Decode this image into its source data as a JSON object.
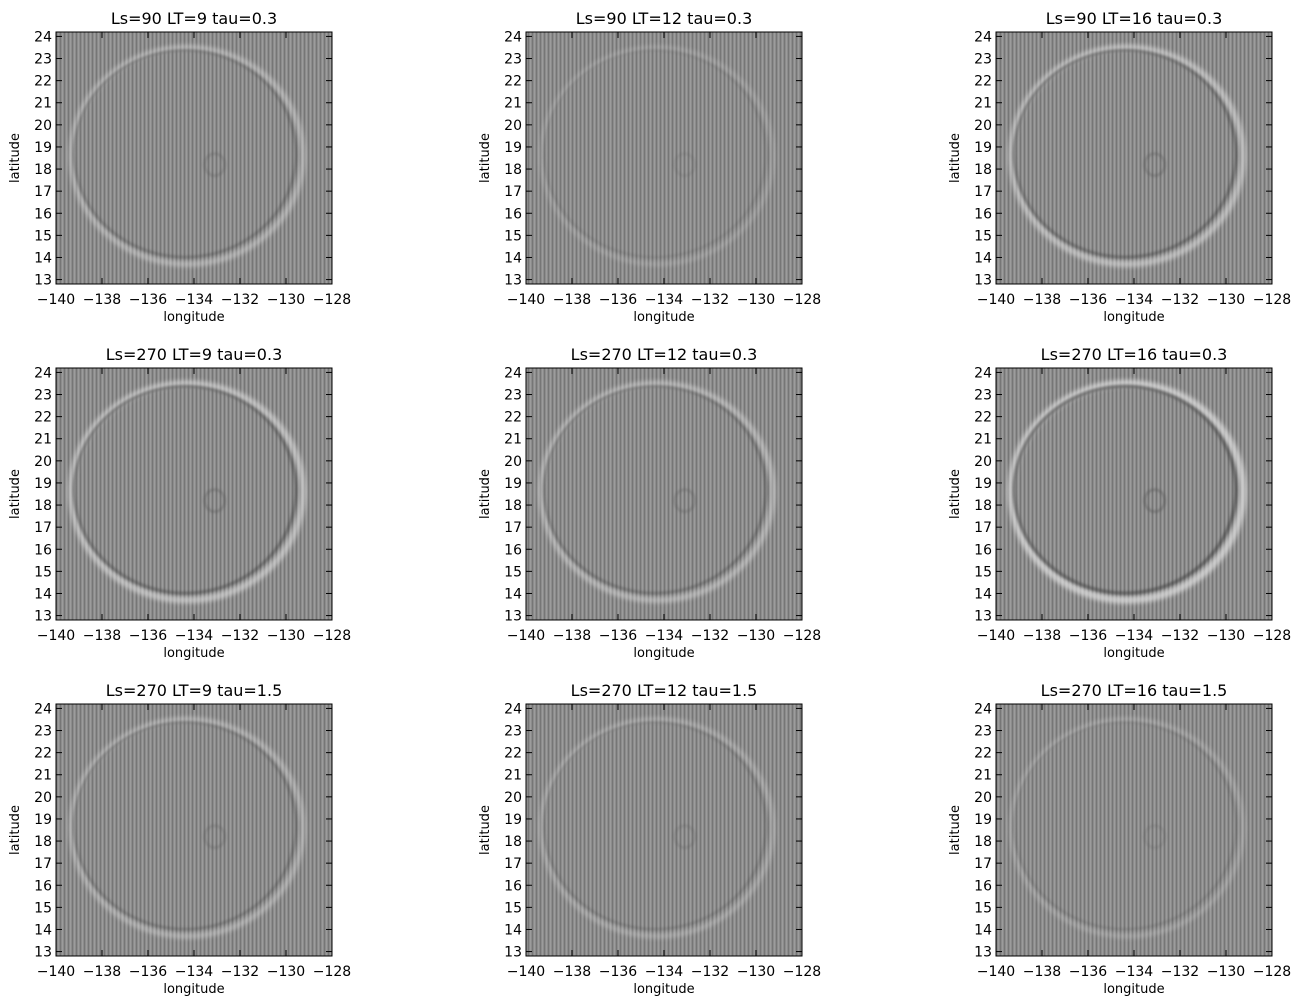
{
  "chart_data": [
    {
      "type": "heatmap",
      "title": "Ls=90 LT=9 tau=0.3",
      "xlabel": "longitude",
      "ylabel": "latitude",
      "x_ticks": [
        "−140",
        "−138",
        "−136",
        "−134",
        "−132",
        "−130",
        "−128"
      ],
      "y_ticks": [
        "13",
        "14",
        "15",
        "16",
        "17",
        "18",
        "19",
        "20",
        "21",
        "22",
        "23",
        "24"
      ],
      "xlim": [
        -140,
        -128
      ],
      "ylim": [
        12.8,
        24.2
      ],
      "colormap": "grayscale",
      "contrast": 0.55
    },
    {
      "type": "heatmap",
      "title": "Ls=90 LT=12 tau=0.3",
      "xlabel": "longitude",
      "ylabel": "latitude",
      "x_ticks": [
        "−140",
        "−138",
        "−136",
        "−134",
        "−132",
        "−130",
        "−128"
      ],
      "y_ticks": [
        "13",
        "14",
        "15",
        "16",
        "17",
        "18",
        "19",
        "20",
        "21",
        "22",
        "23",
        "24"
      ],
      "xlim": [
        -140,
        -128
      ],
      "ylim": [
        12.8,
        24.2
      ],
      "colormap": "grayscale",
      "contrast": 0.18
    },
    {
      "type": "heatmap",
      "title": "Ls=90 LT=16 tau=0.3",
      "xlabel": "longitude",
      "ylabel": "latitude",
      "x_ticks": [
        "−140",
        "−138",
        "−136",
        "−134",
        "−132",
        "−130",
        "−128"
      ],
      "y_ticks": [
        "13",
        "14",
        "15",
        "16",
        "17",
        "18",
        "19",
        "20",
        "21",
        "22",
        "23",
        "24"
      ],
      "xlim": [
        -140,
        -128
      ],
      "ylim": [
        12.8,
        24.2
      ],
      "colormap": "grayscale",
      "contrast": 0.75
    },
    {
      "type": "heatmap",
      "title": "Ls=270 LT=9 tau=0.3",
      "xlabel": "longitude",
      "ylabel": "latitude",
      "x_ticks": [
        "−140",
        "−138",
        "−136",
        "−134",
        "−132",
        "−130",
        "−128"
      ],
      "y_ticks": [
        "13",
        "14",
        "15",
        "16",
        "17",
        "18",
        "19",
        "20",
        "21",
        "22",
        "23",
        "24"
      ],
      "xlim": [
        -140,
        -128
      ],
      "ylim": [
        12.8,
        24.2
      ],
      "colormap": "grayscale",
      "contrast": 0.8
    },
    {
      "type": "heatmap",
      "title": "Ls=270 LT=12 tau=0.3",
      "xlabel": "longitude",
      "ylabel": "latitude",
      "x_ticks": [
        "−140",
        "−138",
        "−136",
        "−134",
        "−132",
        "−130",
        "−128"
      ],
      "y_ticks": [
        "13",
        "14",
        "15",
        "16",
        "17",
        "18",
        "19",
        "20",
        "21",
        "22",
        "23",
        "24"
      ],
      "xlim": [
        -140,
        -128
      ],
      "ylim": [
        12.8,
        24.2
      ],
      "colormap": "grayscale",
      "contrast": 0.6
    },
    {
      "type": "heatmap",
      "title": "Ls=270 LT=16 tau=0.3",
      "xlabel": "longitude",
      "ylabel": "latitude",
      "x_ticks": [
        "−140",
        "−138",
        "−136",
        "−134",
        "−132",
        "−130",
        "−128"
      ],
      "y_ticks": [
        "13",
        "14",
        "15",
        "16",
        "17",
        "18",
        "19",
        "20",
        "21",
        "22",
        "23",
        "24"
      ],
      "xlim": [
        -140,
        -128
      ],
      "ylim": [
        12.8,
        24.2
      ],
      "colormap": "grayscale",
      "contrast": 1.0
    },
    {
      "type": "heatmap",
      "title": "Ls=270 LT=9 tau=1.5",
      "xlabel": "longitude",
      "ylabel": "latitude",
      "x_ticks": [
        "−140",
        "−138",
        "−136",
        "−134",
        "−132",
        "−130",
        "−128"
      ],
      "y_ticks": [
        "13",
        "14",
        "15",
        "16",
        "17",
        "18",
        "19",
        "20",
        "21",
        "22",
        "23",
        "24"
      ],
      "xlim": [
        -140,
        -128
      ],
      "ylim": [
        12.8,
        24.2
      ],
      "colormap": "grayscale",
      "contrast": 0.5
    },
    {
      "type": "heatmap",
      "title": "Ls=270 LT=12 tau=1.5",
      "xlabel": "longitude",
      "ylabel": "latitude",
      "x_ticks": [
        "−140",
        "−138",
        "−136",
        "−134",
        "−132",
        "−130",
        "−128"
      ],
      "y_ticks": [
        "13",
        "14",
        "15",
        "16",
        "17",
        "18",
        "19",
        "20",
        "21",
        "22",
        "23",
        "24"
      ],
      "xlim": [
        -140,
        -128
      ],
      "ylim": [
        12.8,
        24.2
      ],
      "colormap": "grayscale",
      "contrast": 0.35
    },
    {
      "type": "heatmap",
      "title": "Ls=270 LT=16 tau=1.5",
      "xlabel": "longitude",
      "ylabel": "latitude",
      "x_ticks": [
        "−140",
        "−138",
        "−136",
        "−134",
        "−132",
        "−130",
        "−128"
      ],
      "y_ticks": [
        "13",
        "14",
        "15",
        "16",
        "17",
        "18",
        "19",
        "20",
        "21",
        "22",
        "23",
        "24"
      ],
      "xlim": [
        -140,
        -128
      ],
      "ylim": [
        12.8,
        24.2
      ],
      "colormap": "grayscale",
      "contrast": 0.25
    }
  ],
  "colors": {
    "background": "#ffffff",
    "field_gray": "#8a8a8a",
    "bright_ridge": "#ececec",
    "dark_ridge": "#2a2a2a"
  }
}
